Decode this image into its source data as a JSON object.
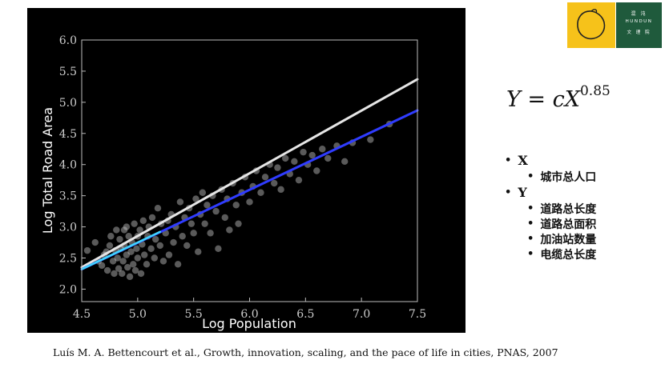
{
  "chart_data": {
    "type": "scatter",
    "xlabel": "Log Population",
    "ylabel": "Log Total Road Area",
    "xlim": [
      4.5,
      7.5
    ],
    "ylim": [
      1.8,
      6.0
    ],
    "xticks": [
      "4.5",
      "5.0",
      "5.5",
      "6.0",
      "6.5",
      "7.0",
      "7.5"
    ],
    "yticks": [
      "2.0",
      "2.5",
      "3.0",
      "3.5",
      "4.0",
      "4.5",
      "5.0",
      "5.5",
      "6.0"
    ],
    "grid": false,
    "colors": {
      "background": "#000000",
      "points": "#c8c8c8",
      "white_line": "#e6e6e6",
      "blue_line": "#2f3cff",
      "cyan_line": "#3fd6ff"
    },
    "fit_lines": [
      {
        "color": "white",
        "x": [
          4.5,
          7.5
        ],
        "y": [
          2.35,
          5.37
        ]
      },
      {
        "color": "blue",
        "x": [
          4.5,
          7.5
        ],
        "y": [
          2.32,
          4.87
        ]
      },
      {
        "color": "cyan",
        "x": [
          4.5,
          5.2
        ],
        "y": [
          2.32,
          2.92
        ]
      }
    ],
    "points": [
      [
        4.55,
        2.62
      ],
      [
        4.62,
        2.75
      ],
      [
        4.65,
        2.45
      ],
      [
        4.68,
        2.38
      ],
      [
        4.7,
        2.55
      ],
      [
        4.72,
        2.6
      ],
      [
        4.73,
        2.3
      ],
      [
        4.75,
        2.7
      ],
      [
        4.76,
        2.85
      ],
      [
        4.78,
        2.45
      ],
      [
        4.79,
        2.25
      ],
      [
        4.8,
        2.62
      ],
      [
        4.81,
        2.95
      ],
      [
        4.82,
        2.5
      ],
      [
        4.83,
        2.33
      ],
      [
        4.84,
        2.8
      ],
      [
        4.85,
        2.65
      ],
      [
        4.86,
        2.25
      ],
      [
        4.87,
        2.45
      ],
      [
        4.88,
        2.95
      ],
      [
        4.88,
        2.7
      ],
      [
        4.9,
        2.55
      ],
      [
        4.9,
        3.0
      ],
      [
        4.91,
        2.35
      ],
      [
        4.92,
        2.85
      ],
      [
        4.93,
        2.2
      ],
      [
        4.94,
        2.6
      ],
      [
        4.95,
        2.75
      ],
      [
        4.96,
        2.4
      ],
      [
        4.97,
        3.05
      ],
      [
        4.98,
        2.3
      ],
      [
        4.99,
        2.65
      ],
      [
        5.0,
        2.85
      ],
      [
        5.0,
        2.5
      ],
      [
        5.02,
        2.95
      ],
      [
        5.03,
        2.25
      ],
      [
        5.04,
        2.72
      ],
      [
        5.05,
        3.1
      ],
      [
        5.06,
        2.55
      ],
      [
        5.08,
        2.4
      ],
      [
        5.09,
        2.85
      ],
      [
        5.1,
        3.0
      ],
      [
        5.12,
        2.65
      ],
      [
        5.13,
        3.15
      ],
      [
        5.15,
        2.5
      ],
      [
        5.16,
        2.8
      ],
      [
        5.18,
        3.3
      ],
      [
        5.2,
        2.7
      ],
      [
        5.21,
        3.05
      ],
      [
        5.23,
        2.45
      ],
      [
        5.25,
        2.9
      ],
      [
        5.27,
        3.1
      ],
      [
        5.28,
        2.55
      ],
      [
        5.3,
        3.2
      ],
      [
        5.32,
        2.75
      ],
      [
        5.34,
        3.0
      ],
      [
        5.36,
        2.4
      ],
      [
        5.38,
        3.4
      ],
      [
        5.4,
        2.85
      ],
      [
        5.42,
        3.15
      ],
      [
        5.44,
        2.7
      ],
      [
        5.46,
        3.3
      ],
      [
        5.48,
        3.05
      ],
      [
        5.5,
        2.9
      ],
      [
        5.52,
        3.45
      ],
      [
        5.54,
        2.6
      ],
      [
        5.56,
        3.2
      ],
      [
        5.58,
        3.55
      ],
      [
        5.6,
        3.05
      ],
      [
        5.62,
        3.35
      ],
      [
        5.65,
        2.9
      ],
      [
        5.67,
        3.5
      ],
      [
        5.7,
        3.25
      ],
      [
        5.72,
        2.65
      ],
      [
        5.75,
        3.6
      ],
      [
        5.78,
        3.15
      ],
      [
        5.8,
        3.45
      ],
      [
        5.82,
        2.95
      ],
      [
        5.85,
        3.7
      ],
      [
        5.88,
        3.35
      ],
      [
        5.9,
        3.05
      ],
      [
        5.93,
        3.55
      ],
      [
        5.96,
        3.8
      ],
      [
        6.0,
        3.4
      ],
      [
        6.03,
        3.65
      ],
      [
        6.06,
        3.9
      ],
      [
        6.1,
        3.55
      ],
      [
        6.14,
        3.8
      ],
      [
        6.18,
        4.0
      ],
      [
        6.22,
        3.7
      ],
      [
        6.25,
        3.95
      ],
      [
        6.28,
        3.6
      ],
      [
        6.32,
        4.1
      ],
      [
        6.36,
        3.85
      ],
      [
        6.4,
        4.05
      ],
      [
        6.44,
        3.75
      ],
      [
        6.48,
        4.2
      ],
      [
        6.52,
        4.0
      ],
      [
        6.56,
        4.15
      ],
      [
        6.6,
        3.9
      ],
      [
        6.65,
        4.25
      ],
      [
        6.7,
        4.1
      ],
      [
        6.78,
        4.3
      ],
      [
        6.85,
        4.05
      ],
      [
        6.92,
        4.35
      ],
      [
        7.08,
        4.4
      ],
      [
        7.25,
        4.65
      ]
    ]
  },
  "formula": {
    "y": "Y",
    "equals": "=",
    "rhs": "cX",
    "exponent": "0.85"
  },
  "variables": {
    "x_label": "X",
    "x_items": [
      "城市总人口"
    ],
    "y_label": "Y",
    "y_items": [
      "道路总长度",
      "道路总面积",
      "加油站数量",
      "电缆总长度"
    ]
  },
  "logo": {
    "name_cn": "混 沌",
    "name_en": "HUNDUN",
    "sub_cn": "文 理 院",
    "colors": {
      "left": "#f6c21a",
      "right": "#1f5a3c"
    }
  },
  "citation": "Luís M. A. Bettencourt et al., Growth, innovation, scaling, and the pace of life in cities, PNAS, 2007"
}
